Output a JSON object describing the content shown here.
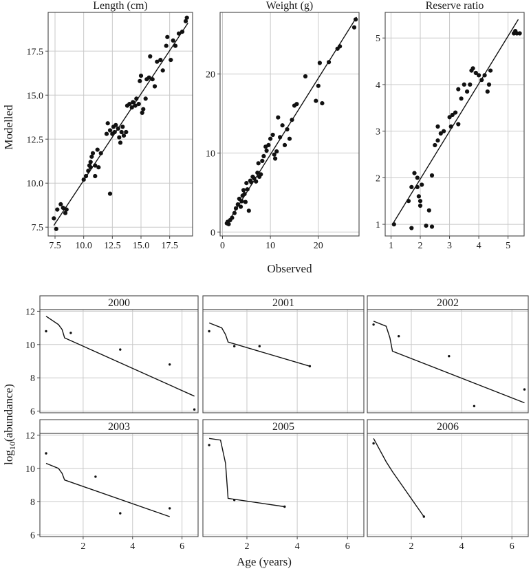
{
  "top_xlabel": "Observed",
  "top_ylabel": "Modelled",
  "bottom_xlabel": "Age (years)",
  "bottom_ylabel": "log10(abundance)",
  "colors": {
    "point": "#111111",
    "line": "#111111",
    "grid": "#c8c8c8",
    "frame": "#444444"
  },
  "chart_data": [
    {
      "type": "scatter",
      "title": "Length (cm)",
      "xlim": [
        6.9,
        19.5
      ],
      "ylim": [
        7.0,
        19.7
      ],
      "xticks": [
        7.5,
        10.0,
        12.5,
        15.0,
        17.5
      ],
      "xtick_labels": [
        "7.5",
        "10.0",
        "12.5",
        "15.0",
        "17.5"
      ],
      "yticks": [
        7.5,
        10.0,
        12.5,
        15.0,
        17.5
      ],
      "ytick_labels": [
        "7.5",
        "10.0",
        "12.5",
        "15.0",
        "17.5"
      ],
      "grid": true,
      "line": [
        [
          7.4,
          7.6
        ],
        [
          19.1,
          19.1
        ]
      ],
      "points": [
        [
          7.4,
          8.0
        ],
        [
          7.6,
          7.4
        ],
        [
          7.7,
          8.5
        ],
        [
          8.0,
          8.8
        ],
        [
          8.2,
          8.6
        ],
        [
          8.4,
          8.3
        ],
        [
          8.5,
          8.5
        ],
        [
          10.0,
          10.2
        ],
        [
          10.2,
          10.4
        ],
        [
          10.4,
          10.7
        ],
        [
          10.5,
          11.0
        ],
        [
          10.6,
          11.2
        ],
        [
          10.7,
          11.5
        ],
        [
          10.8,
          11.7
        ],
        [
          10.6,
          10.9
        ],
        [
          11.0,
          11.0
        ],
        [
          11.0,
          10.4
        ],
        [
          11.3,
          10.9
        ],
        [
          11.2,
          11.9
        ],
        [
          11.5,
          11.7
        ],
        [
          12.3,
          9.4
        ],
        [
          12.0,
          12.8
        ],
        [
          12.1,
          13.4
        ],
        [
          12.3,
          13.0
        ],
        [
          12.5,
          12.8
        ],
        [
          12.6,
          13.2
        ],
        [
          12.7,
          12.9
        ],
        [
          12.8,
          13.3
        ],
        [
          13.0,
          13.1
        ],
        [
          13.1,
          12.6
        ],
        [
          13.2,
          12.3
        ],
        [
          13.3,
          12.9
        ],
        [
          13.4,
          13.2
        ],
        [
          13.5,
          12.7
        ],
        [
          13.7,
          12.9
        ],
        [
          13.8,
          14.4
        ],
        [
          14.0,
          14.5
        ],
        [
          14.2,
          14.3
        ],
        [
          14.3,
          14.6
        ],
        [
          14.5,
          14.4
        ],
        [
          14.6,
          14.8
        ],
        [
          14.8,
          14.5
        ],
        [
          14.9,
          15.8
        ],
        [
          15.0,
          16.1
        ],
        [
          15.1,
          14.0
        ],
        [
          15.2,
          14.2
        ],
        [
          15.4,
          14.8
        ],
        [
          15.5,
          15.9
        ],
        [
          15.7,
          16.0
        ],
        [
          15.8,
          17.2
        ],
        [
          16.0,
          15.9
        ],
        [
          16.2,
          15.5
        ],
        [
          16.4,
          16.9
        ],
        [
          16.7,
          17.0
        ],
        [
          16.9,
          16.4
        ],
        [
          17.2,
          17.8
        ],
        [
          17.3,
          18.3
        ],
        [
          17.6,
          17.0
        ],
        [
          17.8,
          18.1
        ],
        [
          18.0,
          17.8
        ],
        [
          18.3,
          18.5
        ],
        [
          18.6,
          18.6
        ],
        [
          18.9,
          19.2
        ],
        [
          19.0,
          19.4
        ]
      ]
    },
    {
      "type": "scatter",
      "title": "Weight (g)",
      "xlim": [
        -0.5,
        28.5
      ],
      "ylim": [
        -0.5,
        27.8
      ],
      "xticks": [
        0,
        10,
        20
      ],
      "xtick_labels": [
        "0",
        "10",
        "20"
      ],
      "yticks": [
        0,
        10,
        20
      ],
      "ytick_labels": [
        "0",
        "10",
        "20"
      ],
      "grid": true,
      "line": [
        [
          1.0,
          1.1
        ],
        [
          28.0,
          27.2
        ]
      ],
      "points": [
        [
          0.9,
          1.1
        ],
        [
          1.1,
          1.3
        ],
        [
          1.3,
          1.0
        ],
        [
          1.6,
          1.5
        ],
        [
          2.0,
          1.8
        ],
        [
          2.5,
          2.4
        ],
        [
          2.8,
          3.0
        ],
        [
          3.2,
          3.5
        ],
        [
          3.5,
          4.2
        ],
        [
          3.8,
          3.2
        ],
        [
          4.0,
          3.9
        ],
        [
          4.2,
          4.6
        ],
        [
          4.4,
          5.3
        ],
        [
          4.6,
          4.8
        ],
        [
          4.8,
          3.8
        ],
        [
          5.0,
          6.2
        ],
        [
          5.2,
          5.4
        ],
        [
          5.5,
          2.7
        ],
        [
          5.8,
          6.5
        ],
        [
          6.0,
          6.3
        ],
        [
          6.3,
          7.0
        ],
        [
          6.6,
          6.8
        ],
        [
          7.0,
          6.4
        ],
        [
          7.3,
          7.5
        ],
        [
          7.5,
          8.7
        ],
        [
          7.7,
          7.0
        ],
        [
          8.0,
          7.3
        ],
        [
          8.3,
          9.0
        ],
        [
          8.6,
          9.6
        ],
        [
          9.0,
          10.8
        ],
        [
          9.2,
          10.3
        ],
        [
          9.6,
          11.0
        ],
        [
          10.0,
          11.8
        ],
        [
          10.5,
          12.3
        ],
        [
          10.8,
          9.8
        ],
        [
          11.0,
          9.3
        ],
        [
          11.3,
          10.2
        ],
        [
          11.6,
          14.5
        ],
        [
          12.0,
          12.0
        ],
        [
          12.5,
          13.5
        ],
        [
          13.0,
          11.0
        ],
        [
          13.5,
          13.0
        ],
        [
          14.0,
          11.8
        ],
        [
          14.5,
          14.2
        ],
        [
          15.0,
          16.0
        ],
        [
          15.5,
          16.2
        ],
        [
          17.3,
          19.7
        ],
        [
          19.5,
          16.6
        ],
        [
          20.0,
          18.5
        ],
        [
          20.3,
          21.4
        ],
        [
          20.8,
          16.3
        ],
        [
          22.2,
          21.5
        ],
        [
          24.0,
          23.2
        ],
        [
          24.5,
          23.5
        ],
        [
          27.5,
          25.9
        ],
        [
          27.8,
          26.9
        ]
      ]
    },
    {
      "type": "scatter",
      "title": "Reserve ratio",
      "xlim": [
        0.8,
        5.55
      ],
      "ylim": [
        0.75,
        5.55
      ],
      "xticks": [
        1,
        2,
        3,
        4,
        5
      ],
      "xtick_labels": [
        "1",
        "2",
        "3",
        "4",
        "5"
      ],
      "yticks": [
        1,
        2,
        3,
        4,
        5
      ],
      "ytick_labels": [
        "1",
        "2",
        "3",
        "4",
        "5"
      ],
      "grid": true,
      "line": [
        [
          1.05,
          1.0
        ],
        [
          5.35,
          5.4
        ]
      ],
      "points": [
        [
          1.1,
          1.0
        ],
        [
          1.6,
          1.5
        ],
        [
          1.7,
          0.92
        ],
        [
          1.7,
          1.8
        ],
        [
          1.8,
          2.1
        ],
        [
          1.9,
          2.0
        ],
        [
          1.9,
          1.8
        ],
        [
          1.95,
          1.6
        ],
        [
          2.0,
          1.5
        ],
        [
          2.0,
          1.4
        ],
        [
          2.05,
          1.85
        ],
        [
          2.2,
          0.97
        ],
        [
          2.4,
          0.95
        ],
        [
          2.3,
          1.3
        ],
        [
          2.4,
          2.05
        ],
        [
          2.5,
          2.7
        ],
        [
          2.6,
          3.1
        ],
        [
          2.6,
          2.8
        ],
        [
          2.7,
          2.95
        ],
        [
          2.8,
          3.0
        ],
        [
          3.0,
          3.3
        ],
        [
          3.05,
          3.1
        ],
        [
          3.1,
          3.35
        ],
        [
          3.2,
          3.4
        ],
        [
          3.3,
          3.15
        ],
        [
          3.3,
          3.9
        ],
        [
          3.4,
          3.7
        ],
        [
          3.5,
          4.0
        ],
        [
          3.6,
          3.85
        ],
        [
          3.7,
          4.0
        ],
        [
          3.75,
          4.3
        ],
        [
          3.8,
          4.35
        ],
        [
          3.9,
          4.25
        ],
        [
          4.0,
          4.2
        ],
        [
          4.1,
          4.1
        ],
        [
          4.2,
          4.2
        ],
        [
          4.3,
          3.85
        ],
        [
          4.35,
          4.0
        ],
        [
          4.4,
          4.3
        ],
        [
          5.2,
          5.1
        ],
        [
          5.25,
          5.15
        ],
        [
          5.3,
          5.1
        ],
        [
          5.4,
          5.1
        ]
      ]
    },
    {
      "type": "line",
      "title": "2000",
      "xlim": [
        0.25,
        6.65
      ],
      "ylim": [
        5.9,
        12.1
      ],
      "xticks": [
        2,
        4,
        6
      ],
      "xtick_labels": [
        "2",
        "4",
        "6"
      ],
      "yticks": [
        6,
        8,
        10,
        12
      ],
      "ytick_labels": [
        "6",
        "8",
        "10",
        "12"
      ],
      "grid": true,
      "line": [
        [
          0.5,
          11.7
        ],
        [
          1.0,
          11.2
        ],
        [
          1.15,
          10.9
        ],
        [
          1.25,
          10.4
        ],
        [
          6.5,
          6.9
        ]
      ],
      "points": [
        [
          0.5,
          10.8
        ],
        [
          1.5,
          10.7
        ],
        [
          3.5,
          9.7
        ],
        [
          5.5,
          8.8
        ],
        [
          6.5,
          6.1
        ]
      ]
    },
    {
      "type": "line",
      "title": "2001",
      "xlim": [
        0.25,
        6.65
      ],
      "ylim": [
        5.9,
        12.1
      ],
      "xticks": [
        2,
        4,
        6
      ],
      "xtick_labels": [
        "2",
        "4",
        "6"
      ],
      "yticks": [
        6,
        8,
        10,
        12
      ],
      "ytick_labels": [
        "6",
        "8",
        "10",
        "12"
      ],
      "grid": true,
      "line": [
        [
          0.5,
          11.3
        ],
        [
          1.0,
          11.0
        ],
        [
          1.15,
          10.6
        ],
        [
          1.25,
          10.15
        ],
        [
          4.5,
          8.7
        ]
      ],
      "points": [
        [
          0.5,
          10.8
        ],
        [
          1.5,
          9.9
        ],
        [
          2.5,
          9.9
        ],
        [
          4.5,
          8.7
        ]
      ]
    },
    {
      "type": "line",
      "title": "2002",
      "xlim": [
        0.25,
        6.65
      ],
      "ylim": [
        5.9,
        12.1
      ],
      "xticks": [
        2,
        4,
        6
      ],
      "xtick_labels": [
        "2",
        "4",
        "6"
      ],
      "yticks": [
        6,
        8,
        10,
        12
      ],
      "ytick_labels": [
        "6",
        "8",
        "10",
        "12"
      ],
      "grid": true,
      "line": [
        [
          0.5,
          11.4
        ],
        [
          1.0,
          11.1
        ],
        [
          1.15,
          10.4
        ],
        [
          1.25,
          9.6
        ],
        [
          6.5,
          6.5
        ]
      ],
      "points": [
        [
          0.5,
          11.2
        ],
        [
          1.5,
          10.5
        ],
        [
          3.5,
          9.3
        ],
        [
          4.5,
          6.3
        ],
        [
          6.5,
          7.3
        ]
      ]
    },
    {
      "type": "line",
      "title": "2003",
      "xlim": [
        0.25,
        6.65
      ],
      "ylim": [
        5.9,
        12.1
      ],
      "xticks": [
        2,
        4,
        6
      ],
      "xtick_labels": [
        "2",
        "4",
        "6"
      ],
      "yticks": [
        6,
        8,
        10,
        12
      ],
      "ytick_labels": [
        "6",
        "8",
        "10",
        "12"
      ],
      "grid": true,
      "line": [
        [
          0.5,
          10.3
        ],
        [
          1.0,
          10.0
        ],
        [
          1.15,
          9.7
        ],
        [
          1.25,
          9.3
        ],
        [
          5.5,
          7.1
        ]
      ],
      "points": [
        [
          0.5,
          10.9
        ],
        [
          2.5,
          9.5
        ],
        [
          3.5,
          7.3
        ],
        [
          5.5,
          7.6
        ]
      ]
    },
    {
      "type": "line",
      "title": "2005",
      "xlim": [
        0.25,
        6.65
      ],
      "ylim": [
        5.9,
        12.1
      ],
      "xticks": [
        2,
        4,
        6
      ],
      "xtick_labels": [
        "2",
        "4",
        "6"
      ],
      "yticks": [
        6,
        8,
        10,
        12
      ],
      "ytick_labels": [
        "6",
        "8",
        "10",
        "12"
      ],
      "grid": true,
      "line": [
        [
          0.5,
          11.8
        ],
        [
          0.95,
          11.7
        ],
        [
          1.15,
          10.3
        ],
        [
          1.25,
          8.2
        ],
        [
          3.5,
          7.7
        ]
      ],
      "points": [
        [
          0.5,
          11.4
        ],
        [
          1.5,
          8.1
        ],
        [
          3.5,
          7.7
        ]
      ]
    },
    {
      "type": "line",
      "title": "2006",
      "xlim": [
        0.25,
        6.65
      ],
      "ylim": [
        5.9,
        12.1
      ],
      "xticks": [
        2,
        4,
        6
      ],
      "xtick_labels": [
        "2",
        "4",
        "6"
      ],
      "yticks": [
        6,
        8,
        10,
        12
      ],
      "ytick_labels": [
        "6",
        "8",
        "10",
        "12"
      ],
      "grid": true,
      "line": [
        [
          0.5,
          11.8
        ],
        [
          1.0,
          10.4
        ],
        [
          1.25,
          9.8
        ],
        [
          2.5,
          7.1
        ]
      ],
      "points": [
        [
          0.5,
          11.5
        ],
        [
          2.5,
          7.1
        ]
      ]
    }
  ]
}
